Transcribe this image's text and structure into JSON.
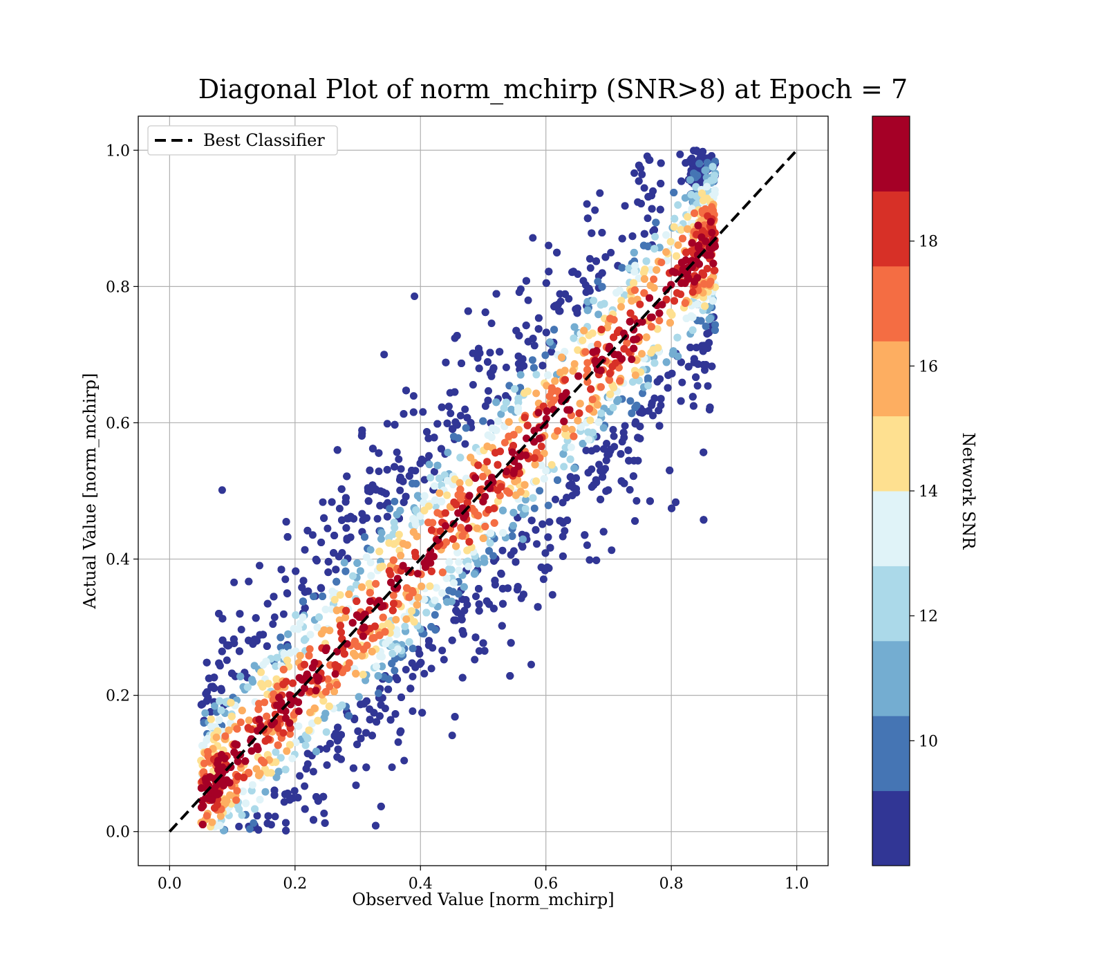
{
  "chart_data": {
    "type": "scatter",
    "title": "Diagonal Plot of norm_mchirp (SNR>8) at Epoch = 7",
    "xlabel": "Observed Value [norm_mchirp]",
    "ylabel": "Actual Value [norm_mchirp]",
    "xlim": [
      -0.05,
      1.05
    ],
    "ylim": [
      -0.05,
      1.05
    ],
    "x_ticks": [
      "0.0",
      "0.2",
      "0.4",
      "0.6",
      "0.8",
      "1.0"
    ],
    "y_ticks": [
      "0.0",
      "0.2",
      "0.4",
      "0.6",
      "0.8",
      "1.0"
    ],
    "grid": true,
    "legend": {
      "placement": "upper-left",
      "entries": [
        "Best Classifier"
      ]
    },
    "reference_line": {
      "name": "Best Classifier",
      "style": "dashed",
      "color": "#000000",
      "x": [
        0.0,
        1.0
      ],
      "y": [
        0.0,
        1.0
      ]
    },
    "point_distribution": {
      "description_x_range": [
        0.05,
        0.87
      ],
      "description_y_range": [
        0.0,
        1.0
      ],
      "dense_core": "points concentrated along the diagonal with high SNR",
      "outer_low_snr": "low SNR points scattered farther from the diagonal"
    },
    "colorbar": {
      "label": "Network SNR",
      "range": [
        8,
        20
      ],
      "tick_labels": [
        "10",
        "12",
        "14",
        "16",
        "18"
      ],
      "tick_values": [
        10,
        12,
        14,
        16,
        18
      ],
      "levels": [
        8,
        9.2,
        10.4,
        11.6,
        12.8,
        14.0,
        15.2,
        16.4,
        17.6,
        18.8,
        20
      ],
      "colors": [
        "#313695",
        "#4575b4",
        "#74add1",
        "#abd9e9",
        "#e0f3f8",
        "#fee090",
        "#fdae61",
        "#f46d43",
        "#d73027",
        "#a50026"
      ]
    }
  }
}
